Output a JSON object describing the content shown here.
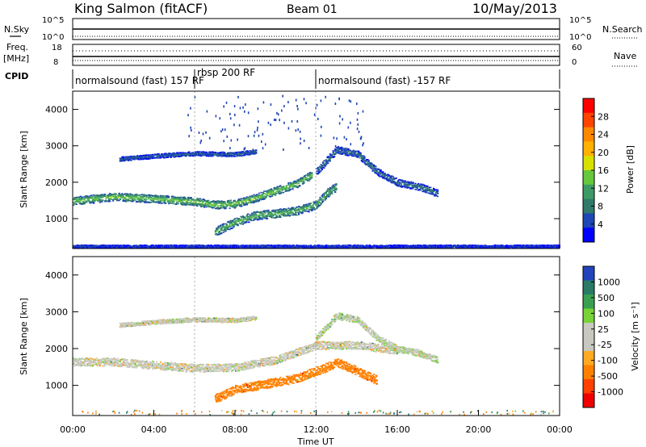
{
  "header": {
    "station": "King Salmon (fitACF)",
    "beam": "Beam 01",
    "date": "10/May/2013"
  },
  "panels": {
    "nsky": {
      "label": "N.Sky",
      "ticks": [
        "10^5",
        "10^0"
      ],
      "right_label": "N.Search",
      "right_ticks": [
        "10^5",
        "10^0"
      ]
    },
    "freq": {
      "label_line1": "Freq.",
      "label_line2": "[MHz]",
      "ticks": [
        "18",
        "8"
      ],
      "right_label": "Nave",
      "right_ticks": [
        "60",
        "0"
      ]
    },
    "cpid": {
      "label": "CPID",
      "segments": [
        {
          "text": "normalsound (fast) 157 RF",
          "start_ut": 0
        },
        {
          "text": "rbsp 200 RF",
          "start_ut": 6
        },
        {
          "text": "normalsound (fast) -157 RF",
          "start_ut": 12
        }
      ]
    }
  },
  "colorbars": {
    "power": {
      "label": "Power [dB]",
      "ticks": [
        "28",
        "24",
        "20",
        "16",
        "12",
        "8",
        "4"
      ],
      "colors": [
        "#ff0000",
        "#ff4400",
        "#ff8800",
        "#ffb000",
        "#d8e000",
        "#66c83c",
        "#3c9a66",
        "#2f7a6a",
        "#1e46b4",
        "#0000ff"
      ]
    },
    "velocity": {
      "label": "Velocity [m s⁻¹]",
      "ticks": [
        "1000",
        "500",
        "100",
        "25",
        "-25",
        "-100",
        "-500",
        "-1000"
      ],
      "colors": [
        "#2244bb",
        "#2a7a66",
        "#3aa050",
        "#78d238",
        "#c8c8c0",
        "#c8c8c0",
        "#ffaa22",
        "#ff8000",
        "#ff4000",
        "#ee0000"
      ]
    }
  },
  "chart_data": {
    "type": "heatmap",
    "xlabel": "Time UT",
    "x_ticks": [
      "00:00",
      "04:00",
      "08:00",
      "12:00",
      "16:00",
      "20:00",
      "00:00"
    ],
    "xlim_hours": [
      0,
      24
    ],
    "ylabel": "Slant Range [km]",
    "y_ticks": [
      1000,
      2000,
      3000,
      4000
    ],
    "ylim_km": [
      180,
      4500
    ],
    "cpid_change_ut": [
      6,
      12
    ],
    "power_bands": [
      {
        "range_km": [
          [
            0,
            1500
          ],
          [
            2,
            1610
          ],
          [
            4,
            1560
          ],
          [
            6,
            1480
          ],
          [
            7,
            1390
          ],
          [
            8,
            1420
          ],
          [
            9,
            1580
          ],
          [
            10,
            1780
          ],
          [
            11,
            1960
          ],
          [
            11.8,
            2230
          ]
        ],
        "half_width_km": 110,
        "power_db": 14
      },
      {
        "range_km": [
          [
            2.3,
            2650
          ],
          [
            4,
            2730
          ],
          [
            6,
            2800
          ],
          [
            8,
            2780
          ],
          [
            9,
            2850
          ]
        ],
        "half_width_km": 60,
        "power_db": 5
      },
      {
        "range_km": [
          [
            7,
            650
          ],
          [
            8,
            920
          ],
          [
            9,
            1100
          ],
          [
            10,
            1150
          ],
          [
            11,
            1220
          ],
          [
            12,
            1400
          ],
          [
            12.5,
            1700
          ],
          [
            13,
            1900
          ]
        ],
        "half_width_km": 120,
        "power_db": 12
      },
      {
        "range_km": [
          [
            12,
            2300
          ],
          [
            13,
            2900
          ],
          [
            14,
            2800
          ],
          [
            15,
            2300
          ],
          [
            16,
            2000
          ],
          [
            17,
            1900
          ],
          [
            18,
            1700
          ]
        ],
        "half_width_km": 100,
        "power_db": 6
      },
      {
        "range_km": [
          [
            0,
            250
          ],
          [
            24,
            250
          ]
        ],
        "half_width_km": 40,
        "power_db": 3
      }
    ],
    "velocity_bands": [
      {
        "range_km": [
          [
            2.3,
            2650
          ],
          [
            4,
            2730
          ],
          [
            6,
            2800
          ],
          [
            8,
            2780
          ],
          [
            9,
            2850
          ]
        ],
        "half_width_km": 60,
        "velocity_ms": 0
      },
      {
        "range_km": [
          [
            0,
            1650
          ],
          [
            2,
            1650
          ],
          [
            4,
            1560
          ],
          [
            6,
            1480
          ],
          [
            8,
            1500
          ],
          [
            10,
            1700
          ],
          [
            12,
            2100
          ],
          [
            14,
            2100
          ],
          [
            16,
            1960
          ]
        ],
        "half_width_km": 110,
        "velocity_ms": 0
      },
      {
        "range_km": [
          [
            12,
            2300
          ],
          [
            13,
            2900
          ],
          [
            14,
            2800
          ],
          [
            15,
            2300
          ],
          [
            16,
            2000
          ],
          [
            17,
            1900
          ],
          [
            18,
            1700
          ]
        ],
        "half_width_km": 90,
        "velocity_ms": 10
      },
      {
        "range_km": [
          [
            7,
            650
          ],
          [
            8,
            900
          ],
          [
            9,
            1000
          ],
          [
            10,
            1100
          ],
          [
            11,
            1200
          ],
          [
            12,
            1400
          ],
          [
            12.5,
            1500
          ],
          [
            13,
            1650
          ],
          [
            14,
            1400
          ],
          [
            15,
            1150
          ]
        ],
        "half_width_km": 120,
        "velocity_ms": -300
      }
    ]
  }
}
